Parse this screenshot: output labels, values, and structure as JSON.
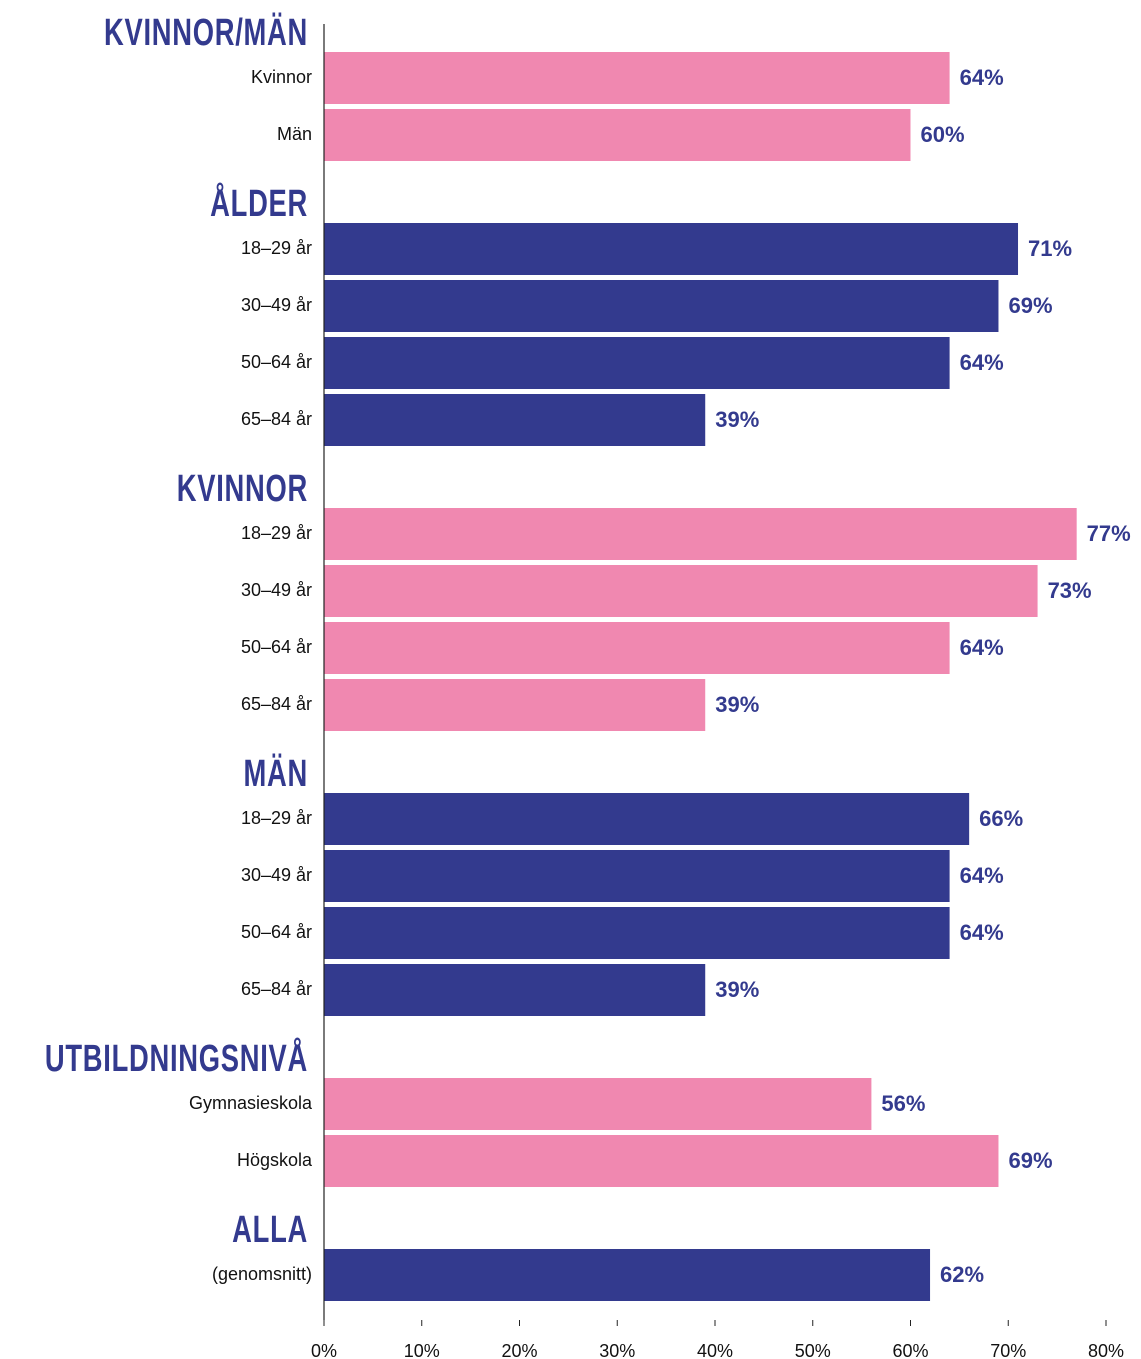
{
  "chart_data": {
    "type": "bar",
    "groups": [
      {
        "title": "KVINNOR/MÄN",
        "color": "#f088b0",
        "categories": [
          "Kvinnor",
          "Män"
        ],
        "values": [
          64,
          60
        ],
        "value_labels": [
          "64%",
          "60%"
        ]
      },
      {
        "title": "ÅLDER",
        "color": "#333a8e",
        "categories": [
          "18–29 år",
          "30–49 år",
          "50–64 år",
          "65–84 år"
        ],
        "values": [
          71,
          69,
          64,
          39
        ],
        "value_labels": [
          "71%",
          "69%",
          "64%",
          "39%"
        ]
      },
      {
        "title": "KVINNOR",
        "color": "#f088b0",
        "categories": [
          "18–29 år",
          "30–49 år",
          "50–64 år",
          "65–84 år"
        ],
        "values": [
          77,
          73,
          64,
          39
        ],
        "value_labels": [
          "77%",
          "73%",
          "64%",
          "39%"
        ]
      },
      {
        "title": "MÄN",
        "color": "#333a8e",
        "categories": [
          "18–29 år",
          "30–49 år",
          "50–64 år",
          "65–84 år"
        ],
        "values": [
          66,
          64,
          64,
          39
        ],
        "value_labels": [
          "66%",
          "64%",
          "64%",
          "39%"
        ]
      },
      {
        "title": "UTBILDNINGSNIVÅ",
        "color": "#f088b0",
        "categories": [
          "Gymnasieskola",
          "Högskola"
        ],
        "values": [
          56,
          69
        ],
        "value_labels": [
          "56%",
          "69%"
        ]
      },
      {
        "title": "ALLA",
        "color": "#333a8e",
        "categories": [
          "(genomsnitt)"
        ],
        "values": [
          62
        ],
        "value_labels": [
          "62%"
        ]
      }
    ],
    "label_color": "#333a8e",
    "xlim": [
      0,
      80
    ],
    "xticks": [
      {
        "value": 0,
        "label": "0%"
      },
      {
        "value": 10,
        "label": "10%"
      },
      {
        "value": 20,
        "label": "20%"
      },
      {
        "value": 30,
        "label": "30%"
      },
      {
        "value": 40,
        "label": "40%"
      },
      {
        "value": 50,
        "label": "50%"
      },
      {
        "value": 60,
        "label": "60%"
      },
      {
        "value": 70,
        "label": "70%"
      },
      {
        "value": 80,
        "label": "80%"
      }
    ]
  }
}
